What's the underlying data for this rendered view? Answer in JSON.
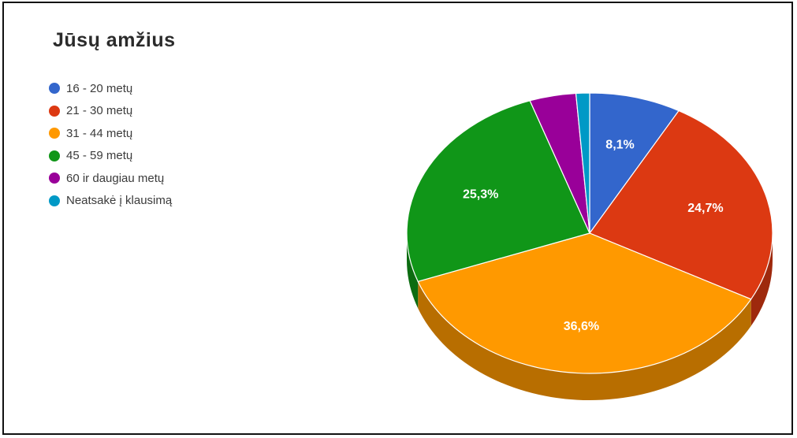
{
  "chart_data": {
    "type": "pie",
    "title": "Jūsų amžius",
    "legend_position": "left",
    "three_d": true,
    "categories": [
      "16 - 20 metų",
      "21 - 30 metų",
      "31 - 44 metų",
      "45 - 59 metų",
      "60 ir daugiau metų",
      "Neatsakė į klausimą"
    ],
    "values": [
      8.1,
      24.7,
      36.6,
      25.3,
      4.1,
      1.2
    ],
    "value_labels": [
      "8,1%",
      "24,7%",
      "36,6%",
      "25,3%",
      "",
      ""
    ],
    "colors": [
      "#3366cc",
      "#dc3912",
      "#ff9900",
      "#109618",
      "#990099",
      "#0099c6"
    ]
  }
}
